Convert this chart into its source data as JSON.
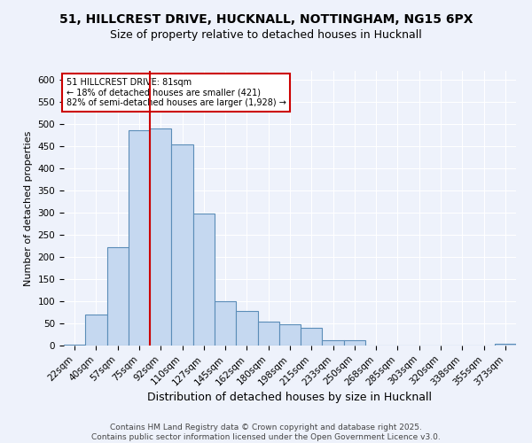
{
  "title1": "51, HILLCREST DRIVE, HUCKNALL, NOTTINGHAM, NG15 6PX",
  "title2": "Size of property relative to detached houses in Hucknall",
  "xlabel": "Distribution of detached houses by size in Hucknall",
  "ylabel": "Number of detached properties",
  "categories": [
    "22sqm",
    "40sqm",
    "57sqm",
    "75sqm",
    "92sqm",
    "110sqm",
    "127sqm",
    "145sqm",
    "162sqm",
    "180sqm",
    "198sqm",
    "215sqm",
    "233sqm",
    "250sqm",
    "268sqm",
    "285sqm",
    "303sqm",
    "320sqm",
    "338sqm",
    "355sqm",
    "373sqm"
  ],
  "values": [
    2,
    70,
    222,
    487,
    490,
    455,
    298,
    100,
    78,
    55,
    48,
    40,
    13,
    13,
    0,
    0,
    0,
    0,
    0,
    0,
    5
  ],
  "bar_color": "#c5d8f0",
  "bar_edge_color": "#5b8db8",
  "vline_color": "#cc0000",
  "annotation_text": "51 HILLCREST DRIVE: 81sqm\n← 18% of detached houses are smaller (421)\n82% of semi-detached houses are larger (1,928) →",
  "annotation_box_color": "#ffffff",
  "annotation_box_edge": "#cc0000",
  "ylim": [
    0,
    620
  ],
  "yticks": [
    0,
    50,
    100,
    150,
    200,
    250,
    300,
    350,
    400,
    450,
    500,
    550,
    600
  ],
  "background_color": "#eef2fb",
  "grid_color": "#ffffff",
  "footer": "Contains HM Land Registry data © Crown copyright and database right 2025.\nContains public sector information licensed under the Open Government Licence v3.0.",
  "title1_fontsize": 10,
  "title2_fontsize": 9,
  "xlabel_fontsize": 9,
  "ylabel_fontsize": 8,
  "tick_fontsize": 7.5,
  "footer_fontsize": 6.5
}
